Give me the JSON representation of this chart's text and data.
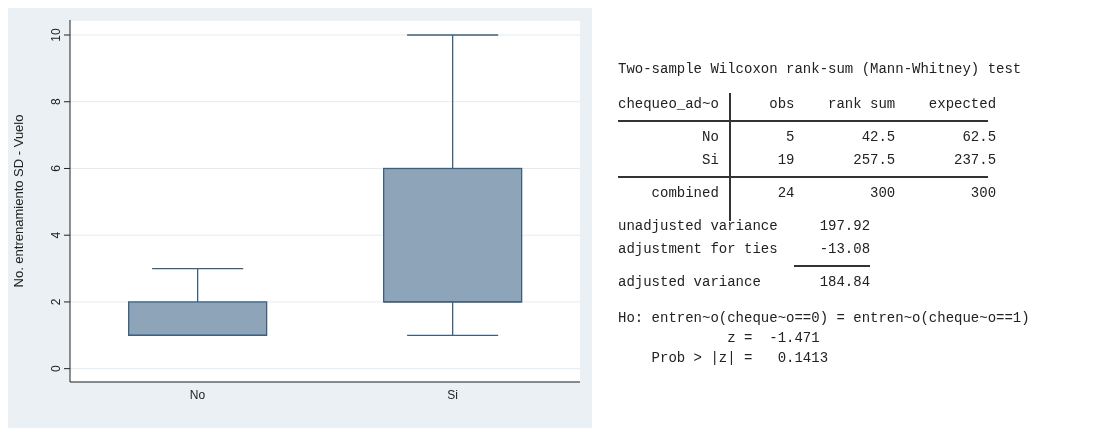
{
  "chart_data": [
    {
      "type": "box",
      "ylabel": "No. entrenamiento SD - Vuelo",
      "categories": [
        "No",
        "Si"
      ],
      "color": "#8ea4b8",
      "boxes": [
        {
          "low": 1,
          "q1": 1,
          "median": 1,
          "q3": 2,
          "high": 3
        },
        {
          "low": 1,
          "q1": 2,
          "median": 2,
          "q3": 6,
          "high": 10
        }
      ],
      "ylim": [
        -0.4,
        10.45
      ],
      "yticks": [
        0,
        2,
        4,
        6,
        8,
        10
      ],
      "grid": "y"
    },
    {
      "type": "other",
      "title": "Two-sample Wilcoxon rank-sum (Mann-Whitney) test",
      "annotations": [
        "chequeo_ad~o      obs    rank sum    expected",
        "          No        5        42.5        62.5",
        "          Si       19       257.5       237.5",
        "    combined       24         300         300",
        "unadjusted variance     197.92",
        "adjustment for ties     -13.08",
        "adjusted variance       184.84",
        "Ho: entren~o(cheque~o==0) = entren~o(cheque~o==1)",
        "             z =  -1.471",
        "    Prob > |z| =   0.1413"
      ]
    }
  ]
}
